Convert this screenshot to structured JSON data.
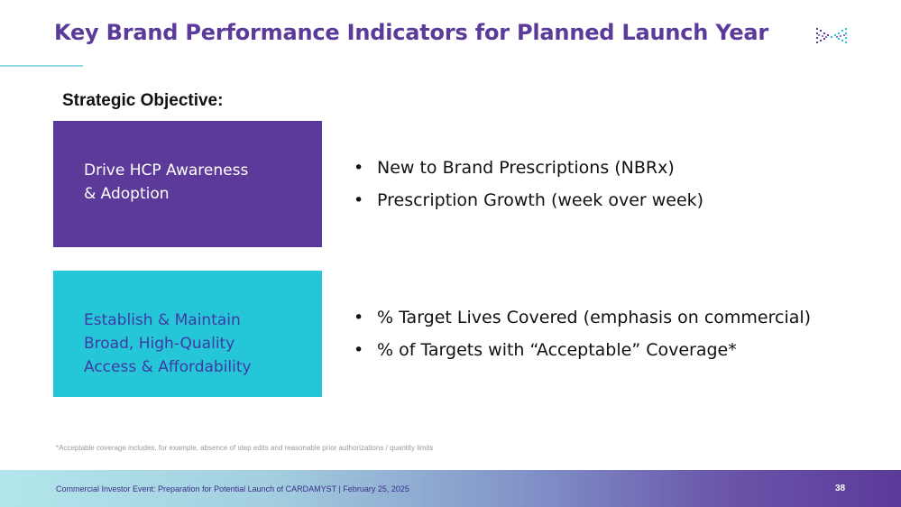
{
  "slide": {
    "title": "Key Brand Performance Indicators for Planned Launch Year",
    "logo_icon": "company-logo-icon"
  },
  "objective": {
    "heading": "Strategic Objective:"
  },
  "objectives": [
    {
      "box_lines": [
        "Drive HCP Awareness",
        "& Adoption"
      ],
      "box_color": "#5b3a9a",
      "bullets": [
        "New to Brand Prescriptions (NBRx)",
        "Prescription Growth (week over week)"
      ]
    },
    {
      "box_lines": [
        "Establish & Maintain",
        "Broad, High-Quality",
        "Access & Affordability"
      ],
      "box_color": "#26c6d9",
      "bullets": [
        "% Target Lives Covered (emphasis on commercial)",
        "% of Targets with “Acceptable” Coverage*"
      ]
    }
  ],
  "bullet_glyph": "•",
  "footnote": "*Acceptable coverage includes, for example, absence of step edits and reasonable prior authorizations / quantity limits",
  "footer": {
    "text": "Commercial Investor Event: Preparation for Potential Launch of CARDAMYST | February 25, 2025",
    "page_number": "38"
  },
  "colors": {
    "accent_purple": "#5b3a9a",
    "accent_teal": "#26c6d9",
    "teal_box_text": "#3f3aa3"
  }
}
